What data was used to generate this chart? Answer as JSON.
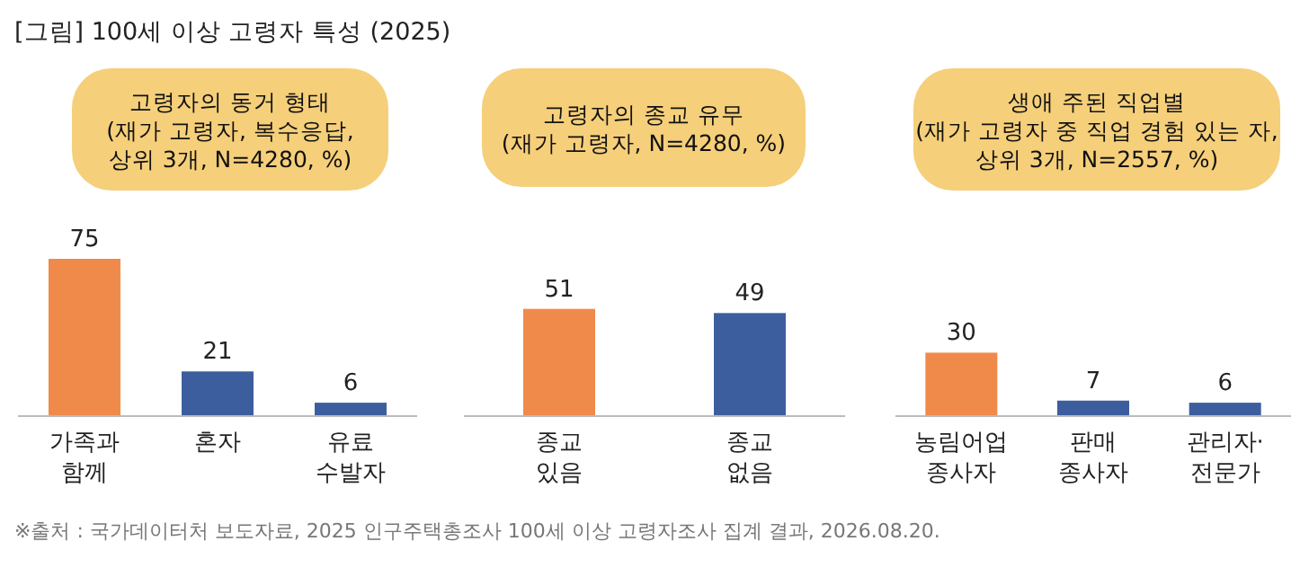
{
  "chart_data": [
    {
      "type": "bar",
      "title": "고령자의 동거 형태\n(재가 고령자, 복수응답,\n상위 3개, N=4280, %)",
      "categories": [
        "가족과\n함께",
        "혼자",
        "유료\n수발자"
      ],
      "values": [
        75,
        21,
        6
      ],
      "colors": [
        "#f08a4b",
        "#3d5e9e",
        "#3d5e9e"
      ],
      "data_labels": true,
      "annotations": [
        "[그림] 100세 이상 고령자 특성 (2025)"
      ]
    },
    {
      "type": "bar",
      "title": "고령자의 종교 유무\n(재가 고령자, N=4280, %)",
      "categories": [
        "종교\n있음",
        "종교\n없음"
      ],
      "values": [
        51,
        49
      ],
      "colors": [
        "#f08a4b",
        "#3d5e9e"
      ],
      "data_labels": true
    },
    {
      "type": "bar",
      "title": "생애 주된 직업별\n(재가 고령자 중 직업 경험 있는 자,\n상위 3개, N=2557, %)",
      "categories": [
        "농림어업\n종사자",
        "판매\n종사자",
        "관리자·\n전문가"
      ],
      "values": [
        30,
        7,
        6
      ],
      "colors": [
        "#f08a4b",
        "#3d5e9e",
        "#3d5e9e"
      ],
      "data_labels": true,
      "annotations": [
        "※출처 : 국가데이터처 보도자료, 2025 인구주택총조사 100세 이상 고령자조사 집계 결과, 2026.08.20."
      ]
    }
  ]
}
